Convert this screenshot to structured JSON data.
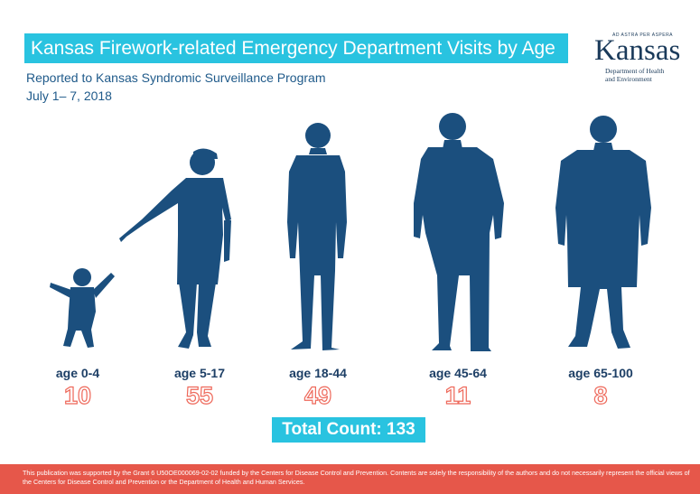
{
  "header": {
    "title": "Kansas Firework-related Emergency Department Visits by Age",
    "subtitle_line1": "Reported to Kansas Syndromic Surveillance Program",
    "subtitle_line2": "July 1– 7, 2018"
  },
  "logo": {
    "motto": "AD ASTRA PER ASPERA",
    "wordmark": "Kansas",
    "dept_line1": "Department of Health",
    "dept_line2": "and Environment"
  },
  "chart_data": {
    "type": "bar",
    "categories": [
      "age 0-4",
      "age 5-17",
      "age 18-44",
      "age 45-64",
      "age 65-100"
    ],
    "values": [
      10,
      55,
      49,
      11,
      8
    ],
    "total_label": "Total Count: 133"
  },
  "colors": {
    "accent": "#29c3e0",
    "figure": "#1b4f7e",
    "count_outline": "#ee6a5c",
    "footer": "#e6574a"
  },
  "footer": {
    "text": "This publication was supported by the Grant 6 U50OE000069-02-02 funded by the Centers for Disease Control and Prevention. Contents are solely the responsibility of the authors and do not necessarily represent the official views of the Centers for Disease Control and Prevention or the Department of Health and Human Services."
  }
}
